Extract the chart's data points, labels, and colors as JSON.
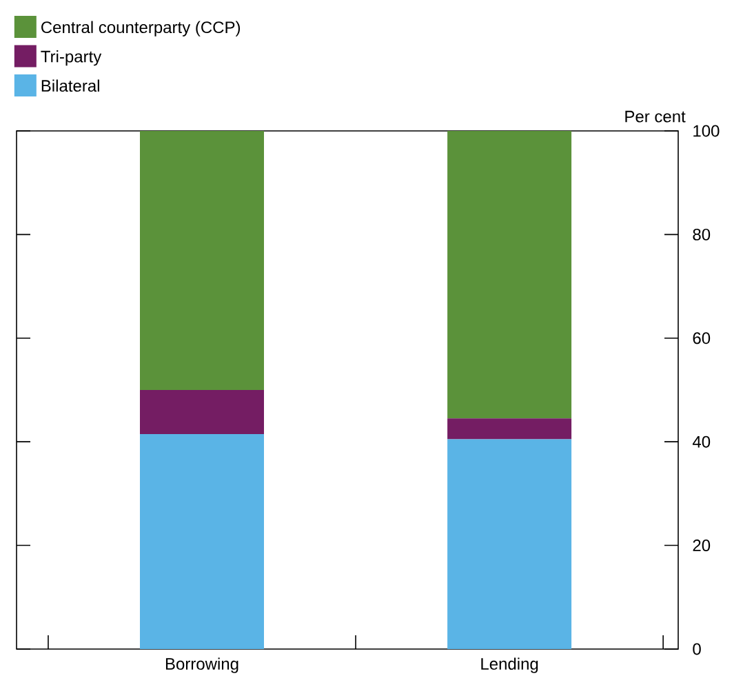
{
  "chart_data": {
    "type": "bar",
    "stacked": true,
    "categories": [
      "Borrowing",
      "Lending"
    ],
    "ylabel": "Per cent",
    "ylim": [
      0,
      100
    ],
    "yticks": [
      0,
      20,
      40,
      60,
      80,
      100
    ],
    "legend": "top left",
    "grid": false,
    "series": [
      {
        "name": "Bilateral",
        "color": "#5ab4e6",
        "values": [
          41.5,
          40.5
        ]
      },
      {
        "name": "Tri-party",
        "color": "#741d63",
        "values": [
          8.5,
          4
        ]
      },
      {
        "name": "Central counterparty (CCP)",
        "color": "#5b923a",
        "values": [
          50,
          55.5
        ]
      }
    ]
  }
}
